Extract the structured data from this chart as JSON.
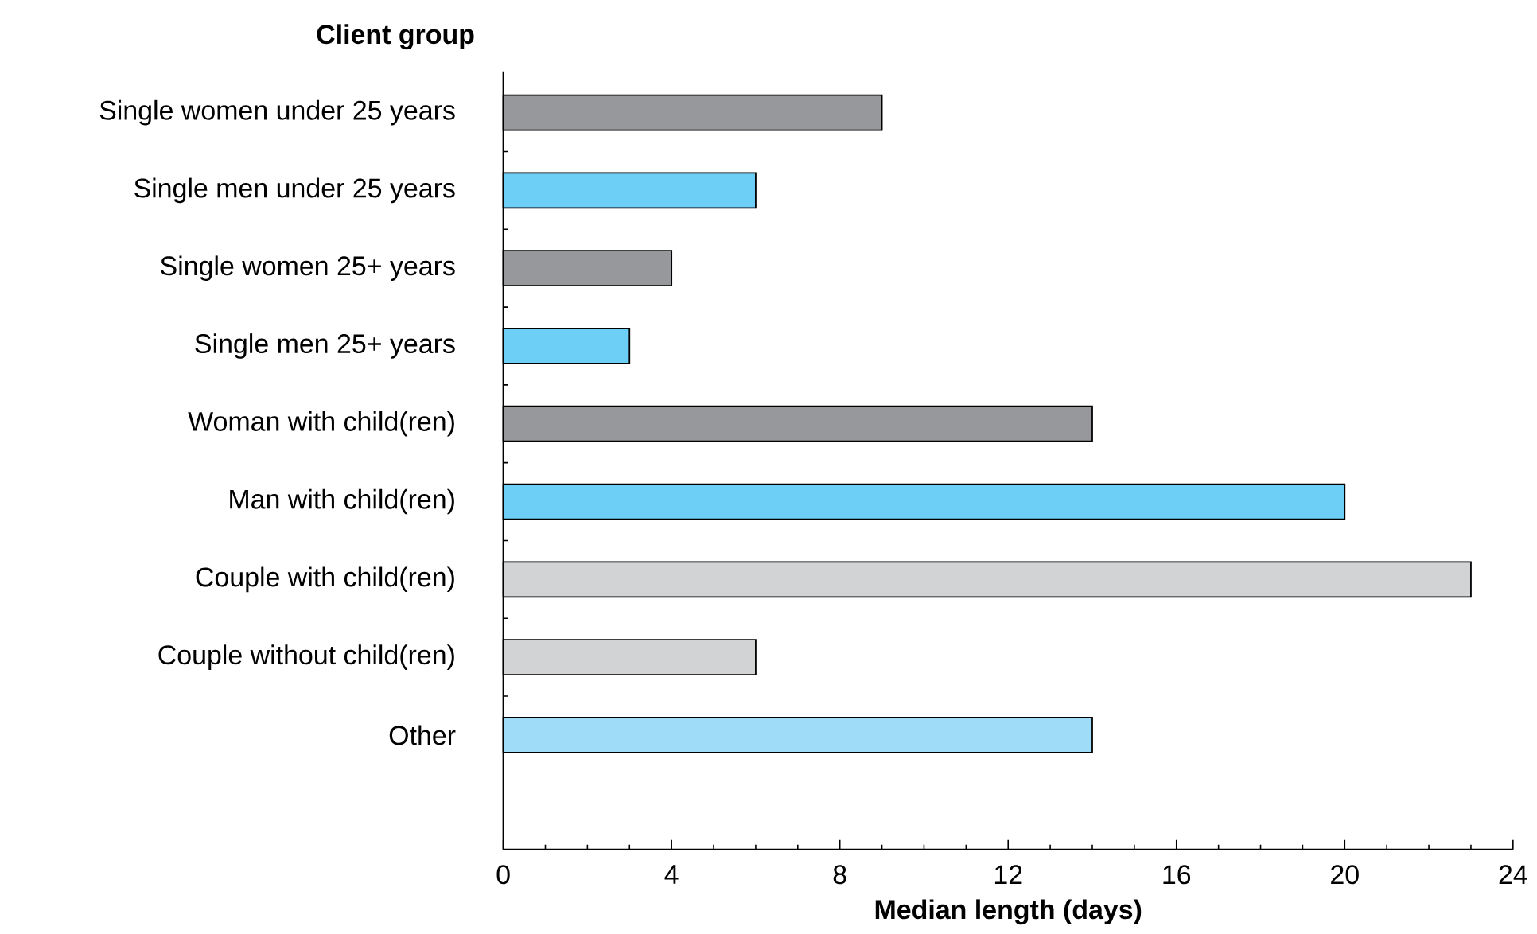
{
  "chart_data": {
    "type": "bar",
    "orientation": "horizontal",
    "ylabel": "Client group",
    "xlabel": "Median length (days)",
    "categories": [
      "Single women under 25 years",
      "Single men under 25 years",
      "Single women 25+ years",
      "Single men 25+ years",
      "Woman with child(ren)",
      "Man with child(ren)",
      "Couple with child(ren)",
      "Couple without child(ren)",
      "Other"
    ],
    "values": [
      9,
      6,
      4,
      3,
      14,
      20,
      23,
      6,
      14
    ],
    "colors": [
      "#97989b",
      "#6dcff6",
      "#97989b",
      "#6dcff6",
      "#97989b",
      "#6dcff6",
      "#d1d3d4",
      "#d1d3d4",
      "#9fdcf7"
    ],
    "xlim": [
      0,
      24
    ],
    "xticks": [
      0,
      4,
      8,
      12,
      16,
      20,
      24
    ]
  }
}
